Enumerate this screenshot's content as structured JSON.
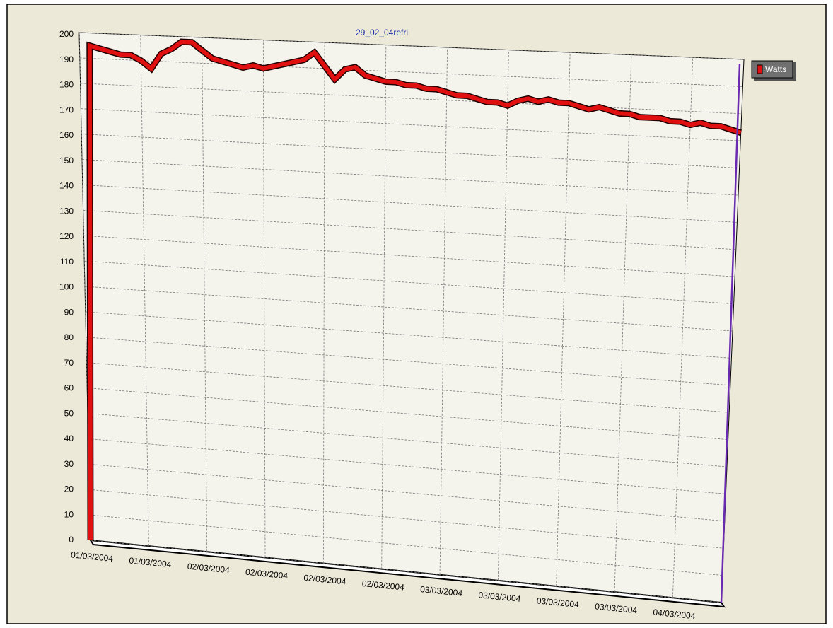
{
  "chart_data": {
    "type": "line",
    "title": "29_02_04refri",
    "categories": [
      "01/03/2004",
      null,
      null,
      null,
      null,
      null,
      "01/03/2004",
      null,
      null,
      null,
      null,
      null,
      "02/03/2004",
      null,
      null,
      null,
      null,
      null,
      "02/03/2004",
      null,
      null,
      null,
      null,
      null,
      "02/03/2004",
      null,
      null,
      null,
      null,
      null,
      "02/03/2004",
      null,
      null,
      null,
      null,
      null,
      "03/03/2004",
      null,
      null,
      null,
      null,
      null,
      "03/03/2004",
      null,
      null,
      null,
      null,
      null,
      "03/03/2004",
      null,
      null,
      null,
      null,
      null,
      "03/03/2004",
      null,
      null,
      null,
      null,
      null,
      "04/03/2004",
      null,
      null,
      null,
      null,
      null
    ],
    "series": [
      {
        "name": "Watts",
        "color": "#e01010",
        "values": [
          0,
          195,
          194,
          193,
          192,
          192,
          190,
          187,
          193,
          195,
          198,
          198,
          195,
          192,
          191,
          190,
          189,
          190,
          189,
          190,
          191,
          192,
          193,
          196,
          191,
          186,
          190,
          191,
          188,
          187,
          186,
          186,
          185,
          185,
          184,
          184,
          183,
          182,
          182,
          181,
          180,
          180,
          179,
          181,
          182,
          181,
          182,
          181,
          181,
          180,
          179,
          180,
          179,
          178,
          178,
          177,
          177,
          177,
          176,
          176,
          175,
          176,
          175,
          175,
          174,
          173
        ]
      }
    ],
    "ylim": [
      0,
      200
    ],
    "yticks": [
      0,
      10,
      20,
      30,
      40,
      50,
      60,
      70,
      80,
      90,
      100,
      110,
      120,
      130,
      140,
      150,
      160,
      170,
      180,
      190,
      200
    ],
    "grid": true
  }
}
